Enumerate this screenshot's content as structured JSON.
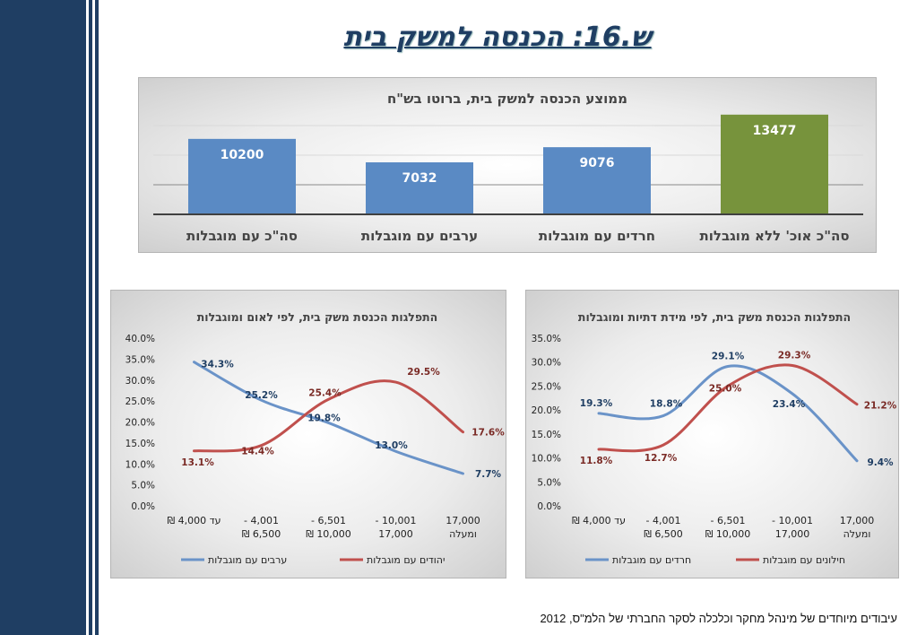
{
  "page_title": "ש.16: הכנסה למשק בית",
  "footnote": "עיבודים מיוחדים של מינהל מחקר וכלכלה  לסקר החברתי של הלמ\"ס, 2012",
  "colors": {
    "sidebar": "#1f3e63",
    "bar_blue": "#5a8ac4",
    "bar_green": "#77933c",
    "line_blue": "#6a93c8",
    "line_red": "#c0504d"
  },
  "chart_data": [
    {
      "type": "bar",
      "title": "ממוצע הכנסה למשק בית, ברוטו בש\"ח",
      "categories": [
        "סה\"כ עם מוגבלות",
        "ערבים עם מוגבלות",
        "חרדים עם מוגבלות",
        "סה\"כ אוכ' ללא מוגבלות"
      ],
      "values": [
        10200,
        7032,
        9076,
        13477
      ],
      "value_labels": [
        "10200",
        "7032",
        "9076",
        "13477"
      ],
      "bar_colors": [
        "#5a8ac4",
        "#5a8ac4",
        "#5a8ac4",
        "#77933c"
      ],
      "ylim": [
        0,
        16000
      ],
      "grid": true
    },
    {
      "type": "line",
      "title": "התפלגות הכנסת משק בית, לפי לאום ומוגבלות",
      "categories": [
        "עד 4,000 ₪",
        "4,001 - 6,500 ₪",
        "6,501 - 10,000 ₪",
        "10,001 - 17,000",
        "17,000 ומעלה"
      ],
      "ytick_labels": [
        "0.0%",
        "5.0%",
        "10.0%",
        "15.0%",
        "20.0%",
        "25.0%",
        "30.0%",
        "35.0%",
        "40.0%"
      ],
      "ylim": [
        0,
        40
      ],
      "series": [
        {
          "name": "ערבים עם מוגבלות",
          "values": [
            34.3,
            25.2,
            19.8,
            13.0,
            7.7
          ],
          "labels": [
            "34.3%",
            "25.2%",
            "19.8%",
            "13.0%",
            "7.7%"
          ]
        },
        {
          "name": "יהודים עם מוגבלות",
          "values": [
            13.1,
            14.4,
            25.4,
            29.5,
            17.6
          ],
          "labels": [
            "13.1%",
            "14.4%",
            "25.4%",
            "29.5%",
            "17.6%"
          ]
        }
      ],
      "legend": "bottom"
    },
    {
      "type": "line",
      "title": "התפלגות הכנסת משק בית, לפי מידת דתיות ומוגבלות",
      "categories": [
        "עד 4,000 ₪",
        "4,001 - 6,500 ₪",
        "6,501 - 10,000 ₪",
        "10,001 - 17,000",
        "17,000 ומעלה"
      ],
      "ytick_labels": [
        "0.0%",
        "5.0%",
        "10.0%",
        "15.0%",
        "20.0%",
        "25.0%",
        "30.0%",
        "35.0%"
      ],
      "ylim": [
        0,
        35
      ],
      "series": [
        {
          "name": "חרדים עם מוגבלות",
          "values": [
            19.3,
            18.8,
            29.1,
            23.4,
            9.4
          ],
          "labels": [
            "19.3%",
            "18.8%",
            "29.1%",
            "23.4%",
            "9.4%"
          ]
        },
        {
          "name": "חילונים עם מוגבלות",
          "values": [
            11.8,
            12.7,
            25.0,
            29.3,
            21.2
          ],
          "labels": [
            "11.8%",
            "12.7%",
            "25.0%",
            "29.3%",
            "21.2%"
          ]
        }
      ],
      "legend": "bottom"
    }
  ]
}
